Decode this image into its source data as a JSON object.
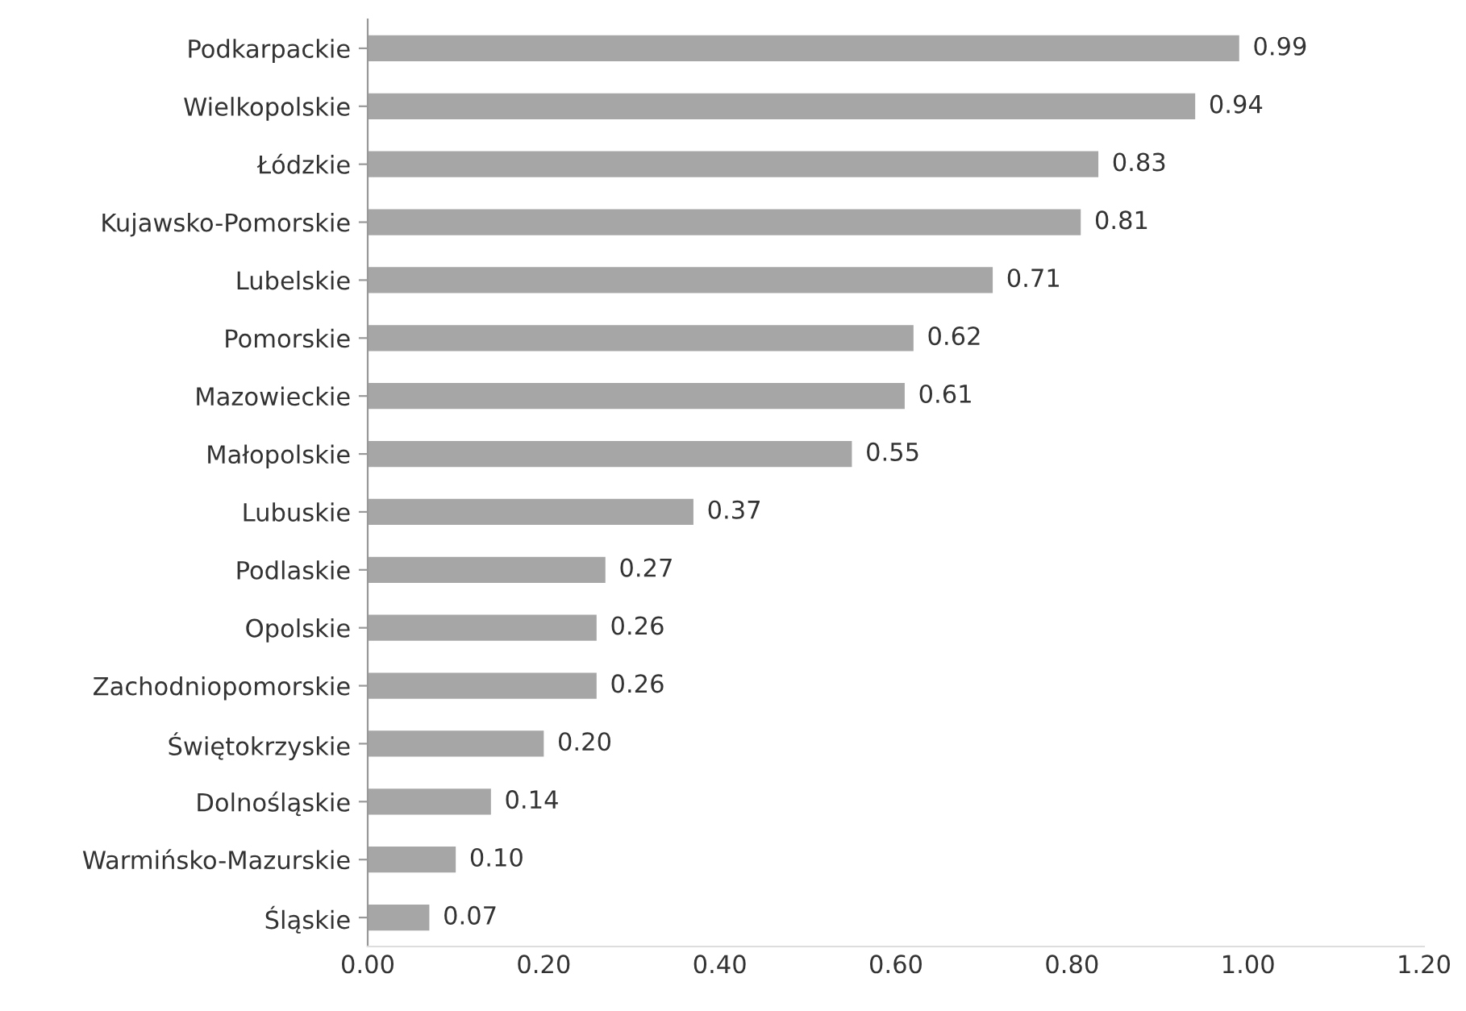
{
  "chart_data": {
    "type": "bar",
    "orientation": "horizontal",
    "categories": [
      "Podkarpackie",
      "Wielkopolskie",
      "Łódzkie",
      "Kujawsko-Pomorskie",
      "Lubelskie",
      "Pomorskie",
      "Mazowieckie",
      "Małopolskie",
      "Lubuskie",
      "Podlaskie",
      "Opolskie",
      "Zachodniopomorskie",
      "Świętokrzyskie",
      "Dolnośląskie",
      "Warmińsko-Mazurskie",
      "Śląskie"
    ],
    "values": [
      0.99,
      0.94,
      0.83,
      0.81,
      0.71,
      0.62,
      0.61,
      0.55,
      0.37,
      0.27,
      0.26,
      0.26,
      0.2,
      0.14,
      0.1,
      0.07
    ],
    "value_labels": [
      "0.99",
      "0.94",
      "0.83",
      "0.81",
      "0.71",
      "0.62",
      "0.61",
      "0.55",
      "0.37",
      "0.27",
      "0.26",
      "0.26",
      "0.20",
      "0.14",
      "0.10",
      "0.07"
    ],
    "color": "#a6a6a6",
    "xlim": [
      0,
      1.2
    ],
    "xticks": [
      {
        "value": 0,
        "label": "0.00"
      },
      {
        "value": 0.2,
        "label": "0.20"
      },
      {
        "value": 0.4,
        "label": "0.40"
      },
      {
        "value": 0.6,
        "label": "0.60"
      },
      {
        "value": 0.8,
        "label": "0.80"
      },
      {
        "value": 1.0,
        "label": "1.00"
      },
      {
        "value": 1.2,
        "label": "1.20"
      }
    ],
    "grid": false,
    "legend": false
  }
}
